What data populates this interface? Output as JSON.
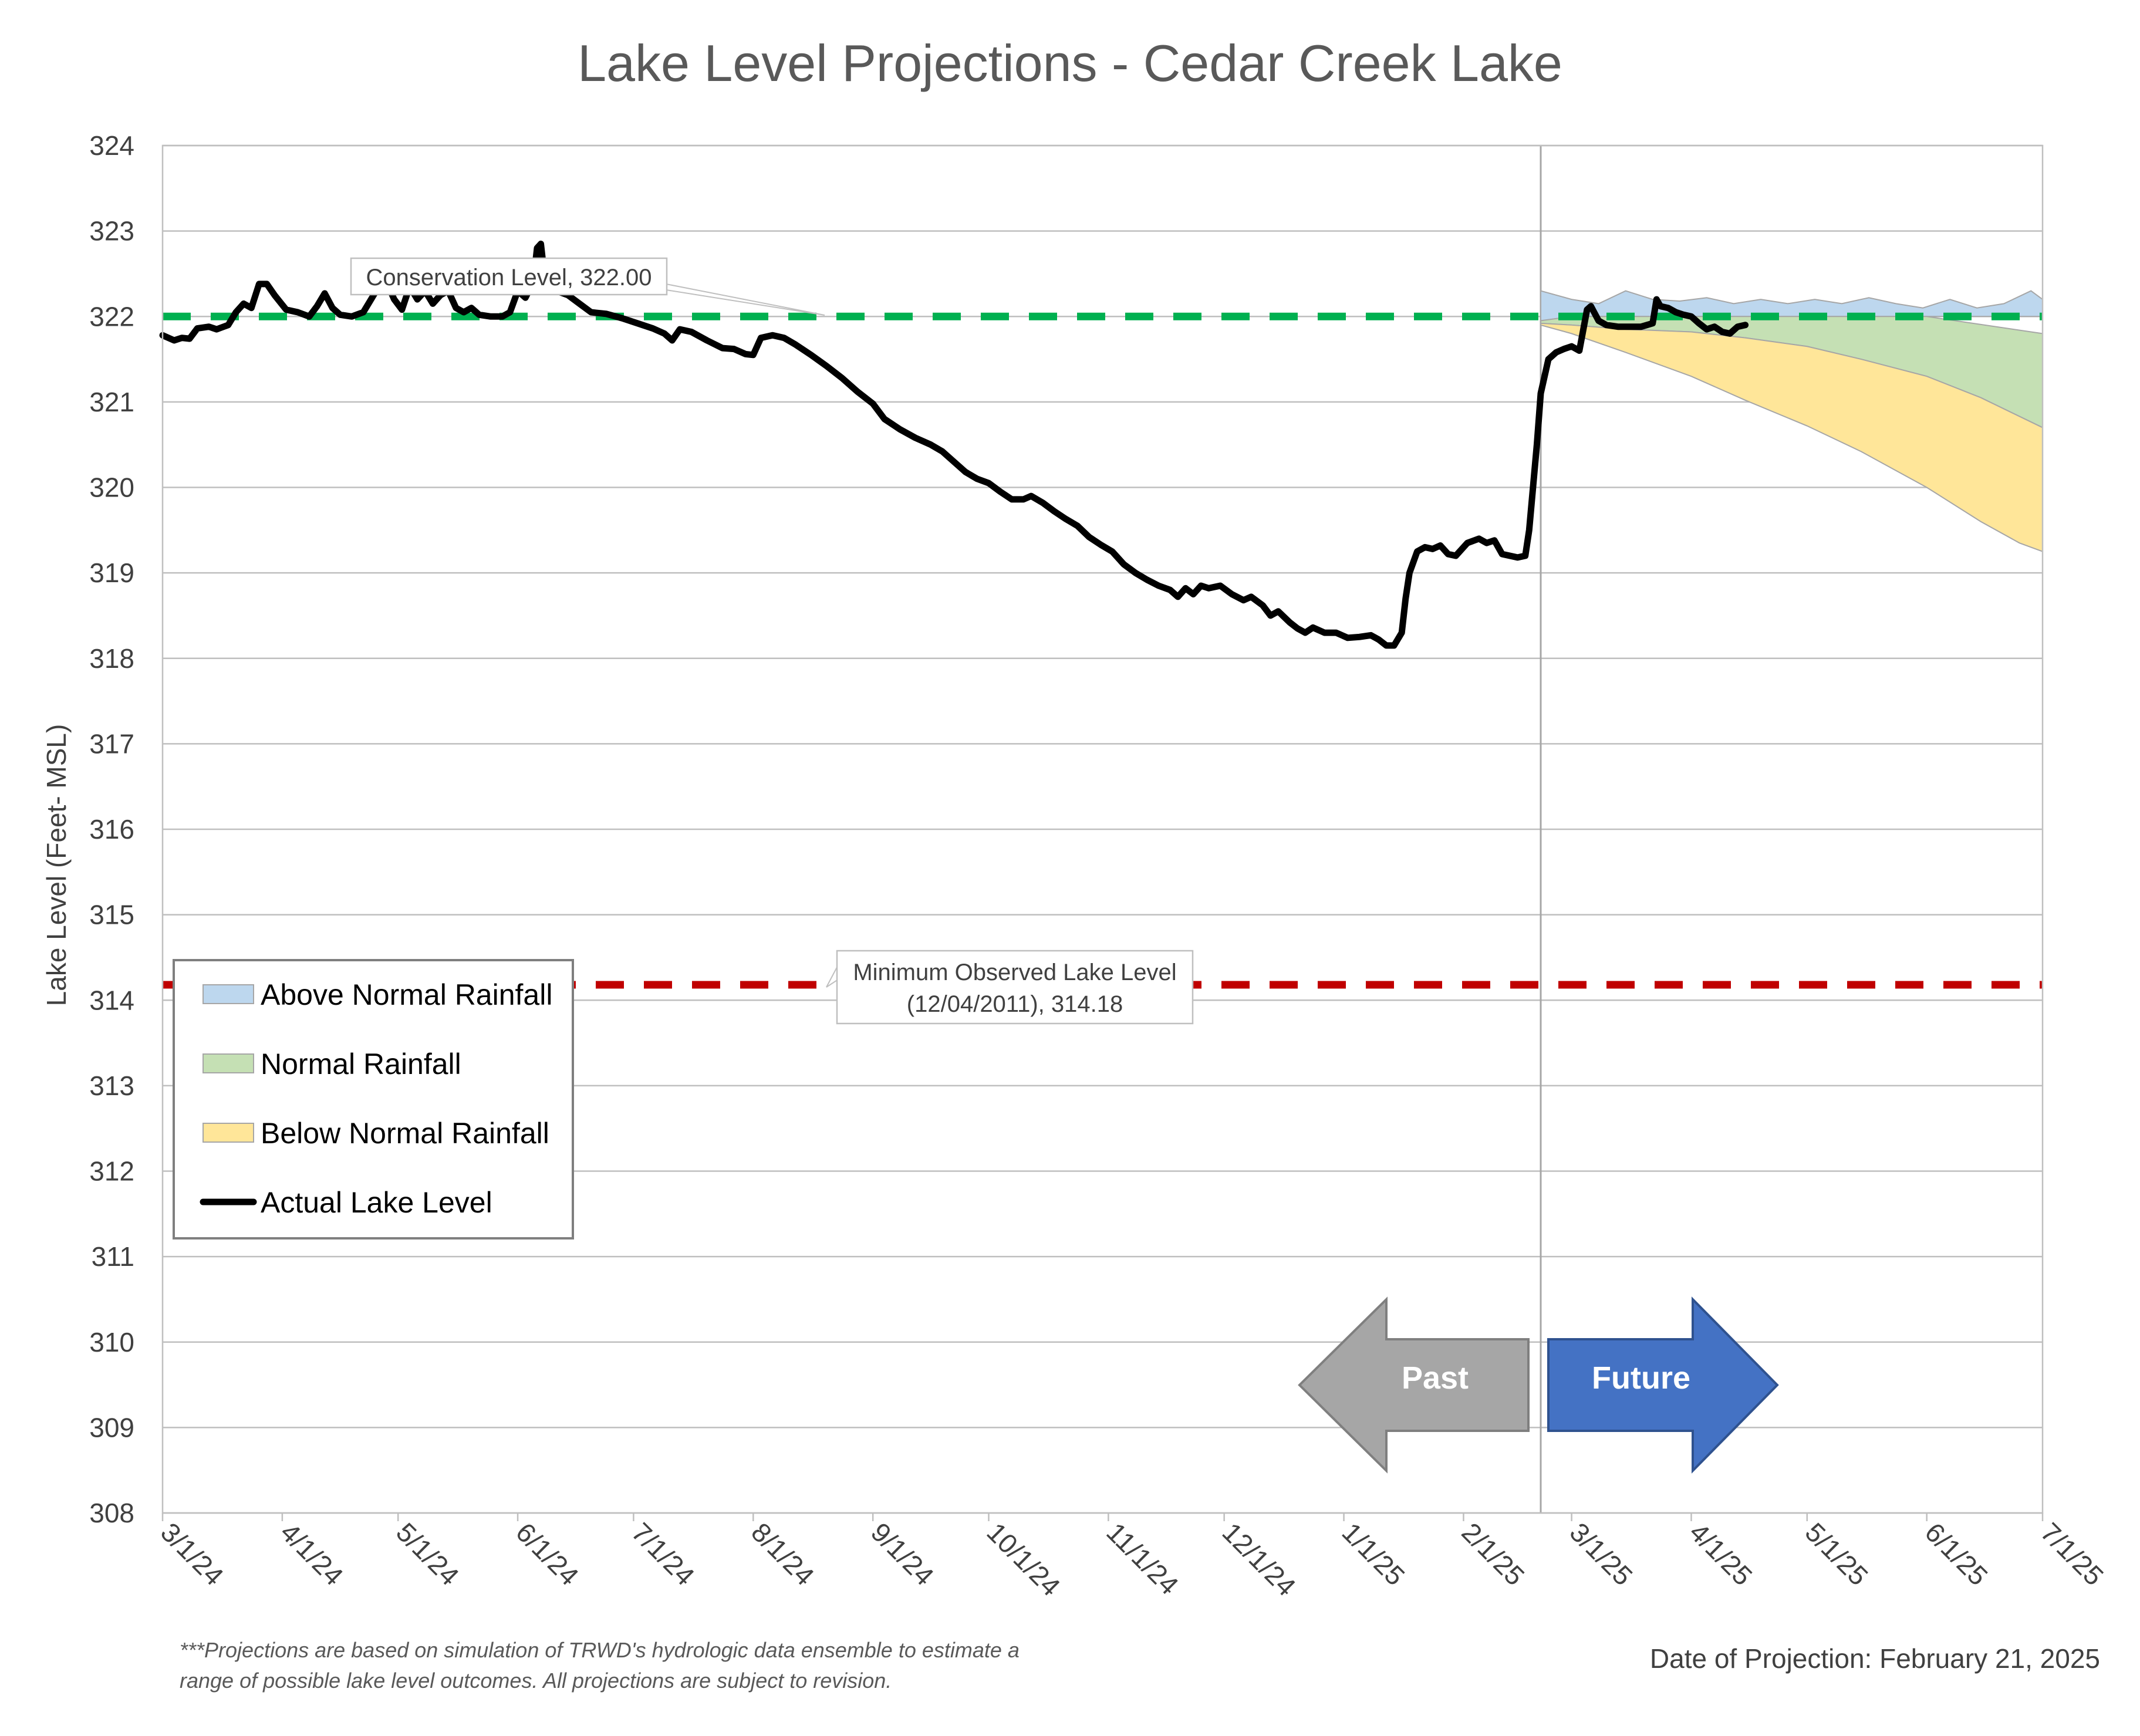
{
  "chart_data": {
    "type": "area",
    "title": "Lake Level Projections - Cedar Creek Lake",
    "ylabel": "Lake Level (Feet- MSL)",
    "xlabel": "",
    "ylim": [
      308,
      324
    ],
    "yticks": [
      308,
      309,
      310,
      311,
      312,
      313,
      314,
      315,
      316,
      317,
      318,
      319,
      320,
      321,
      322,
      323,
      324
    ],
    "xlim": [
      "2024-03-01",
      "2025-07-01"
    ],
    "xticks": [
      {
        "date": "2024-03-01",
        "label": "3/1/24"
      },
      {
        "date": "2024-04-01",
        "label": "4/1/24"
      },
      {
        "date": "2024-05-01",
        "label": "5/1/24"
      },
      {
        "date": "2024-06-01",
        "label": "6/1/24"
      },
      {
        "date": "2024-07-01",
        "label": "7/1/24"
      },
      {
        "date": "2024-08-01",
        "label": "8/1/24"
      },
      {
        "date": "2024-09-01",
        "label": "9/1/24"
      },
      {
        "date": "2024-10-01",
        "label": "10/1/24"
      },
      {
        "date": "2024-11-01",
        "label": "11/1/24"
      },
      {
        "date": "2024-12-01",
        "label": "12/1/24"
      },
      {
        "date": "2025-01-01",
        "label": "1/1/25"
      },
      {
        "date": "2025-02-01",
        "label": "2/1/25"
      },
      {
        "date": "2025-03-01",
        "label": "3/1/25"
      },
      {
        "date": "2025-04-01",
        "label": "4/1/25"
      },
      {
        "date": "2025-05-01",
        "label": "5/1/25"
      },
      {
        "date": "2025-06-01",
        "label": "6/1/25"
      },
      {
        "date": "2025-07-01",
        "label": "7/1/25"
      }
    ],
    "grid": true,
    "legend_position": "lower-left",
    "projection_date": "2025-02-21",
    "reference_lines": [
      {
        "name": "Conservation Level",
        "value": 322.0,
        "color": "#00b050",
        "label": "Conservation Level, 322.00"
      },
      {
        "name": "Minimum Observed Lake Level",
        "value": 314.18,
        "color": "#c00000",
        "label_line1": "Minimum Observed Lake Level",
        "label_line2": "(12/04/2011), 314.18"
      }
    ],
    "series": [
      {
        "name": "Actual Lake Level",
        "kind": "line",
        "color": "#000000",
        "points": [
          [
            "2024-03-01",
            321.78
          ],
          [
            "2024-03-04",
            321.72
          ],
          [
            "2024-03-06",
            321.75
          ],
          [
            "2024-03-08",
            321.74
          ],
          [
            "2024-03-10",
            321.86
          ],
          [
            "2024-03-13",
            321.88
          ],
          [
            "2024-03-15",
            321.85
          ],
          [
            "2024-03-18",
            321.9
          ],
          [
            "2024-03-20",
            322.05
          ],
          [
            "2024-03-22",
            322.15
          ],
          [
            "2024-03-24",
            322.1
          ],
          [
            "2024-03-26",
            322.38
          ],
          [
            "2024-03-28",
            322.38
          ],
          [
            "2024-03-30",
            322.25
          ],
          [
            "2024-04-02",
            322.08
          ],
          [
            "2024-04-05",
            322.05
          ],
          [
            "2024-04-08",
            322.0
          ],
          [
            "2024-04-10",
            322.12
          ],
          [
            "2024-04-12",
            322.27
          ],
          [
            "2024-04-14",
            322.1
          ],
          [
            "2024-04-16",
            322.02
          ],
          [
            "2024-04-19",
            322.0
          ],
          [
            "2024-04-22",
            322.05
          ],
          [
            "2024-04-24",
            322.2
          ],
          [
            "2024-04-26",
            322.35
          ],
          [
            "2024-04-28",
            322.4
          ],
          [
            "2024-04-30",
            322.2
          ],
          [
            "2024-05-02",
            322.08
          ],
          [
            "2024-05-04",
            322.35
          ],
          [
            "2024-05-06",
            322.2
          ],
          [
            "2024-05-08",
            322.3
          ],
          [
            "2024-05-10",
            322.15
          ],
          [
            "2024-05-12",
            322.25
          ],
          [
            "2024-05-14",
            322.3
          ],
          [
            "2024-05-16",
            322.1
          ],
          [
            "2024-05-18",
            322.05
          ],
          [
            "2024-05-20",
            322.1
          ],
          [
            "2024-05-22",
            322.02
          ],
          [
            "2024-05-25",
            322.0
          ],
          [
            "2024-05-28",
            322.0
          ],
          [
            "2024-05-30",
            322.05
          ],
          [
            "2024-06-01",
            322.3
          ],
          [
            "2024-06-03",
            322.22
          ],
          [
            "2024-06-05",
            322.4
          ],
          [
            "2024-06-06",
            322.8
          ],
          [
            "2024-06-07",
            322.85
          ],
          [
            "2024-06-08",
            322.45
          ],
          [
            "2024-06-11",
            322.3
          ],
          [
            "2024-06-14",
            322.25
          ],
          [
            "2024-06-17",
            322.15
          ],
          [
            "2024-06-20",
            322.05
          ],
          [
            "2024-06-24",
            322.03
          ],
          [
            "2024-06-28",
            321.98
          ],
          [
            "2024-07-02",
            321.92
          ],
          [
            "2024-07-06",
            321.86
          ],
          [
            "2024-07-09",
            321.8
          ],
          [
            "2024-07-11",
            321.72
          ],
          [
            "2024-07-13",
            321.85
          ],
          [
            "2024-07-16",
            321.82
          ],
          [
            "2024-07-20",
            321.72
          ],
          [
            "2024-07-24",
            321.63
          ],
          [
            "2024-07-27",
            321.62
          ],
          [
            "2024-07-30",
            321.56
          ],
          [
            "2024-08-01",
            321.55
          ],
          [
            "2024-08-03",
            321.75
          ],
          [
            "2024-08-06",
            321.78
          ],
          [
            "2024-08-09",
            321.75
          ],
          [
            "2024-08-12",
            321.67
          ],
          [
            "2024-08-16",
            321.55
          ],
          [
            "2024-08-20",
            321.42
          ],
          [
            "2024-08-24",
            321.28
          ],
          [
            "2024-08-28",
            321.12
          ],
          [
            "2024-09-01",
            320.98
          ],
          [
            "2024-09-04",
            320.8
          ],
          [
            "2024-09-08",
            320.68
          ],
          [
            "2024-09-12",
            320.58
          ],
          [
            "2024-09-16",
            320.5
          ],
          [
            "2024-09-19",
            320.42
          ],
          [
            "2024-09-22",
            320.3
          ],
          [
            "2024-09-25",
            320.18
          ],
          [
            "2024-09-28",
            320.1
          ],
          [
            "2024-10-01",
            320.05
          ],
          [
            "2024-10-04",
            319.95
          ],
          [
            "2024-10-07",
            319.86
          ],
          [
            "2024-10-10",
            319.86
          ],
          [
            "2024-10-12",
            319.9
          ],
          [
            "2024-10-15",
            319.82
          ],
          [
            "2024-10-18",
            319.72
          ],
          [
            "2024-10-21",
            319.63
          ],
          [
            "2024-10-24",
            319.55
          ],
          [
            "2024-10-27",
            319.42
          ],
          [
            "2024-10-30",
            319.33
          ],
          [
            "2024-11-02",
            319.25
          ],
          [
            "2024-11-05",
            319.1
          ],
          [
            "2024-11-08",
            319.0
          ],
          [
            "2024-11-11",
            318.92
          ],
          [
            "2024-11-14",
            318.85
          ],
          [
            "2024-11-17",
            318.8
          ],
          [
            "2024-11-19",
            318.72
          ],
          [
            "2024-11-21",
            318.82
          ],
          [
            "2024-11-23",
            318.75
          ],
          [
            "2024-11-25",
            318.85
          ],
          [
            "2024-11-27",
            318.82
          ],
          [
            "2024-11-30",
            318.85
          ],
          [
            "2024-12-03",
            318.75
          ],
          [
            "2024-12-06",
            318.68
          ],
          [
            "2024-12-08",
            318.72
          ],
          [
            "2024-12-11",
            318.62
          ],
          [
            "2024-12-13",
            318.5
          ],
          [
            "2024-12-15",
            318.55
          ],
          [
            "2024-12-18",
            318.42
          ],
          [
            "2024-12-20",
            318.35
          ],
          [
            "2024-12-22",
            318.3
          ],
          [
            "2024-12-24",
            318.36
          ],
          [
            "2024-12-27",
            318.3
          ],
          [
            "2024-12-30",
            318.3
          ],
          [
            "2025-01-02",
            318.24
          ],
          [
            "2025-01-05",
            318.25
          ],
          [
            "2025-01-08",
            318.27
          ],
          [
            "2025-01-10",
            318.22
          ],
          [
            "2025-01-12",
            318.15
          ],
          [
            "2025-01-14",
            318.15
          ],
          [
            "2025-01-16",
            318.3
          ],
          [
            "2025-01-17",
            318.7
          ],
          [
            "2025-01-18",
            319.0
          ],
          [
            "2025-01-20",
            319.25
          ],
          [
            "2025-01-22",
            319.3
          ],
          [
            "2025-01-24",
            319.28
          ],
          [
            "2025-01-26",
            319.32
          ],
          [
            "2025-01-28",
            319.22
          ],
          [
            "2025-01-30",
            319.2
          ],
          [
            "2025-02-02",
            319.35
          ],
          [
            "2025-02-05",
            319.4
          ],
          [
            "2025-02-07",
            319.35
          ],
          [
            "2025-02-09",
            319.38
          ],
          [
            "2025-02-11",
            319.22
          ],
          [
            "2025-02-13",
            319.2
          ],
          [
            "2025-02-15",
            319.18
          ],
          [
            "2025-02-17",
            319.2
          ],
          [
            "2025-02-18",
            319.5
          ],
          [
            "2025-02-20",
            320.5
          ],
          [
            "2025-02-21",
            321.1
          ],
          [
            "2025-02-23",
            321.5
          ],
          [
            "2025-02-25",
            321.58
          ],
          [
            "2025-02-27",
            321.62
          ],
          [
            "2025-03-01",
            321.65
          ],
          [
            "2025-03-03",
            321.6
          ],
          [
            "2025-03-05",
            322.08
          ],
          [
            "2025-03-06",
            322.12
          ],
          [
            "2025-03-08",
            321.95
          ],
          [
            "2025-03-10",
            321.9
          ],
          [
            "2025-03-13",
            321.88
          ],
          [
            "2025-03-16",
            321.88
          ],
          [
            "2025-03-19",
            321.88
          ],
          [
            "2025-03-22",
            321.92
          ],
          [
            "2025-03-23",
            322.2
          ],
          [
            "2025-03-24",
            322.12
          ],
          [
            "2025-03-26",
            322.1
          ],
          [
            "2025-03-28",
            322.05
          ],
          [
            "2025-03-30",
            322.02
          ],
          [
            "2025-04-01",
            322.0
          ],
          [
            "2025-04-03",
            321.92
          ],
          [
            "2025-04-05",
            321.85
          ],
          [
            "2025-04-07",
            321.88
          ],
          [
            "2025-04-09",
            321.82
          ],
          [
            "2025-04-11",
            321.8
          ],
          [
            "2025-04-13",
            321.88
          ],
          [
            "2025-04-15",
            321.9
          ]
        ]
      },
      {
        "name": "Above Normal Rainfall",
        "kind": "band",
        "fill": "#bdd7ee",
        "upper": [
          [
            "2025-02-21",
            322.3
          ],
          [
            "2025-03-01",
            322.2
          ],
          [
            "2025-03-08",
            322.15
          ],
          [
            "2025-03-15",
            322.3
          ],
          [
            "2025-03-22",
            322.2
          ],
          [
            "2025-03-29",
            322.18
          ],
          [
            "2025-04-05",
            322.22
          ],
          [
            "2025-04-12",
            322.15
          ],
          [
            "2025-04-19",
            322.2
          ],
          [
            "2025-04-26",
            322.15
          ],
          [
            "2025-05-03",
            322.2
          ],
          [
            "2025-05-10",
            322.15
          ],
          [
            "2025-05-17",
            322.22
          ],
          [
            "2025-05-24",
            322.15
          ],
          [
            "2025-05-31",
            322.1
          ],
          [
            "2025-06-07",
            322.2
          ],
          [
            "2025-06-14",
            322.1
          ],
          [
            "2025-06-21",
            322.15
          ],
          [
            "2025-06-28",
            322.3
          ],
          [
            "2025-07-01",
            322.2
          ]
        ],
        "lower": [
          [
            "2025-02-21",
            321.95
          ],
          [
            "2025-03-01",
            322.0
          ],
          [
            "2025-04-01",
            322.0
          ],
          [
            "2025-05-01",
            322.0
          ],
          [
            "2025-06-01",
            322.0
          ],
          [
            "2025-07-01",
            322.0
          ]
        ]
      },
      {
        "name": "Normal Rainfall",
        "kind": "band",
        "fill": "#c5e0b4",
        "upper": [
          [
            "2025-02-21",
            321.95
          ],
          [
            "2025-03-01",
            322.0
          ],
          [
            "2025-04-01",
            322.0
          ],
          [
            "2025-05-01",
            322.0
          ],
          [
            "2025-06-01",
            322.0
          ],
          [
            "2025-07-01",
            321.8
          ]
        ],
        "lower": [
          [
            "2025-02-21",
            321.92
          ],
          [
            "2025-03-01",
            321.9
          ],
          [
            "2025-03-15",
            321.85
          ],
          [
            "2025-04-01",
            321.82
          ],
          [
            "2025-04-15",
            321.75
          ],
          [
            "2025-05-01",
            321.65
          ],
          [
            "2025-05-15",
            321.5
          ],
          [
            "2025-06-01",
            321.3
          ],
          [
            "2025-06-15",
            321.05
          ],
          [
            "2025-07-01",
            320.7
          ]
        ]
      },
      {
        "name": "Below Normal Rainfall",
        "kind": "band",
        "fill": "#ffe699",
        "upper": [
          [
            "2025-02-21",
            321.92
          ],
          [
            "2025-03-01",
            321.9
          ],
          [
            "2025-03-15",
            321.85
          ],
          [
            "2025-04-01",
            321.82
          ],
          [
            "2025-04-15",
            321.75
          ],
          [
            "2025-05-01",
            321.65
          ],
          [
            "2025-05-15",
            321.5
          ],
          [
            "2025-06-01",
            321.3
          ],
          [
            "2025-06-15",
            321.05
          ],
          [
            "2025-07-01",
            320.7
          ]
        ],
        "lower": [
          [
            "2025-02-21",
            321.9
          ],
          [
            "2025-03-01",
            321.8
          ],
          [
            "2025-03-15",
            321.58
          ],
          [
            "2025-04-01",
            321.3
          ],
          [
            "2025-04-15",
            321.02
          ],
          [
            "2025-05-01",
            320.72
          ],
          [
            "2025-05-15",
            320.42
          ],
          [
            "2025-06-01",
            320.0
          ],
          [
            "2025-06-15",
            319.6
          ],
          [
            "2025-06-25",
            319.35
          ],
          [
            "2025-07-01",
            319.25
          ]
        ]
      }
    ],
    "legend": [
      {
        "label": "Above Normal Rainfall",
        "swatch": "band",
        "color": "#bdd7ee"
      },
      {
        "label": "Normal Rainfall",
        "swatch": "band",
        "color": "#c5e0b4"
      },
      {
        "label": "Below Normal Rainfall",
        "swatch": "band",
        "color": "#ffe699"
      },
      {
        "label": "Actual Lake Level",
        "swatch": "line",
        "color": "#000000"
      }
    ],
    "annotations": {
      "past_label": "Past",
      "future_label": "Future",
      "past_color": "#a6a6a6",
      "future_color": "#4472c4",
      "footnote_line1": "***Projections are based on simulation of TRWD's hydrologic data ensemble to estimate a",
      "footnote_line2": "range of possible lake level outcomes.  All projections are subject to revision.",
      "projection_date_text": "Date of Projection: February 21, 2025"
    }
  }
}
